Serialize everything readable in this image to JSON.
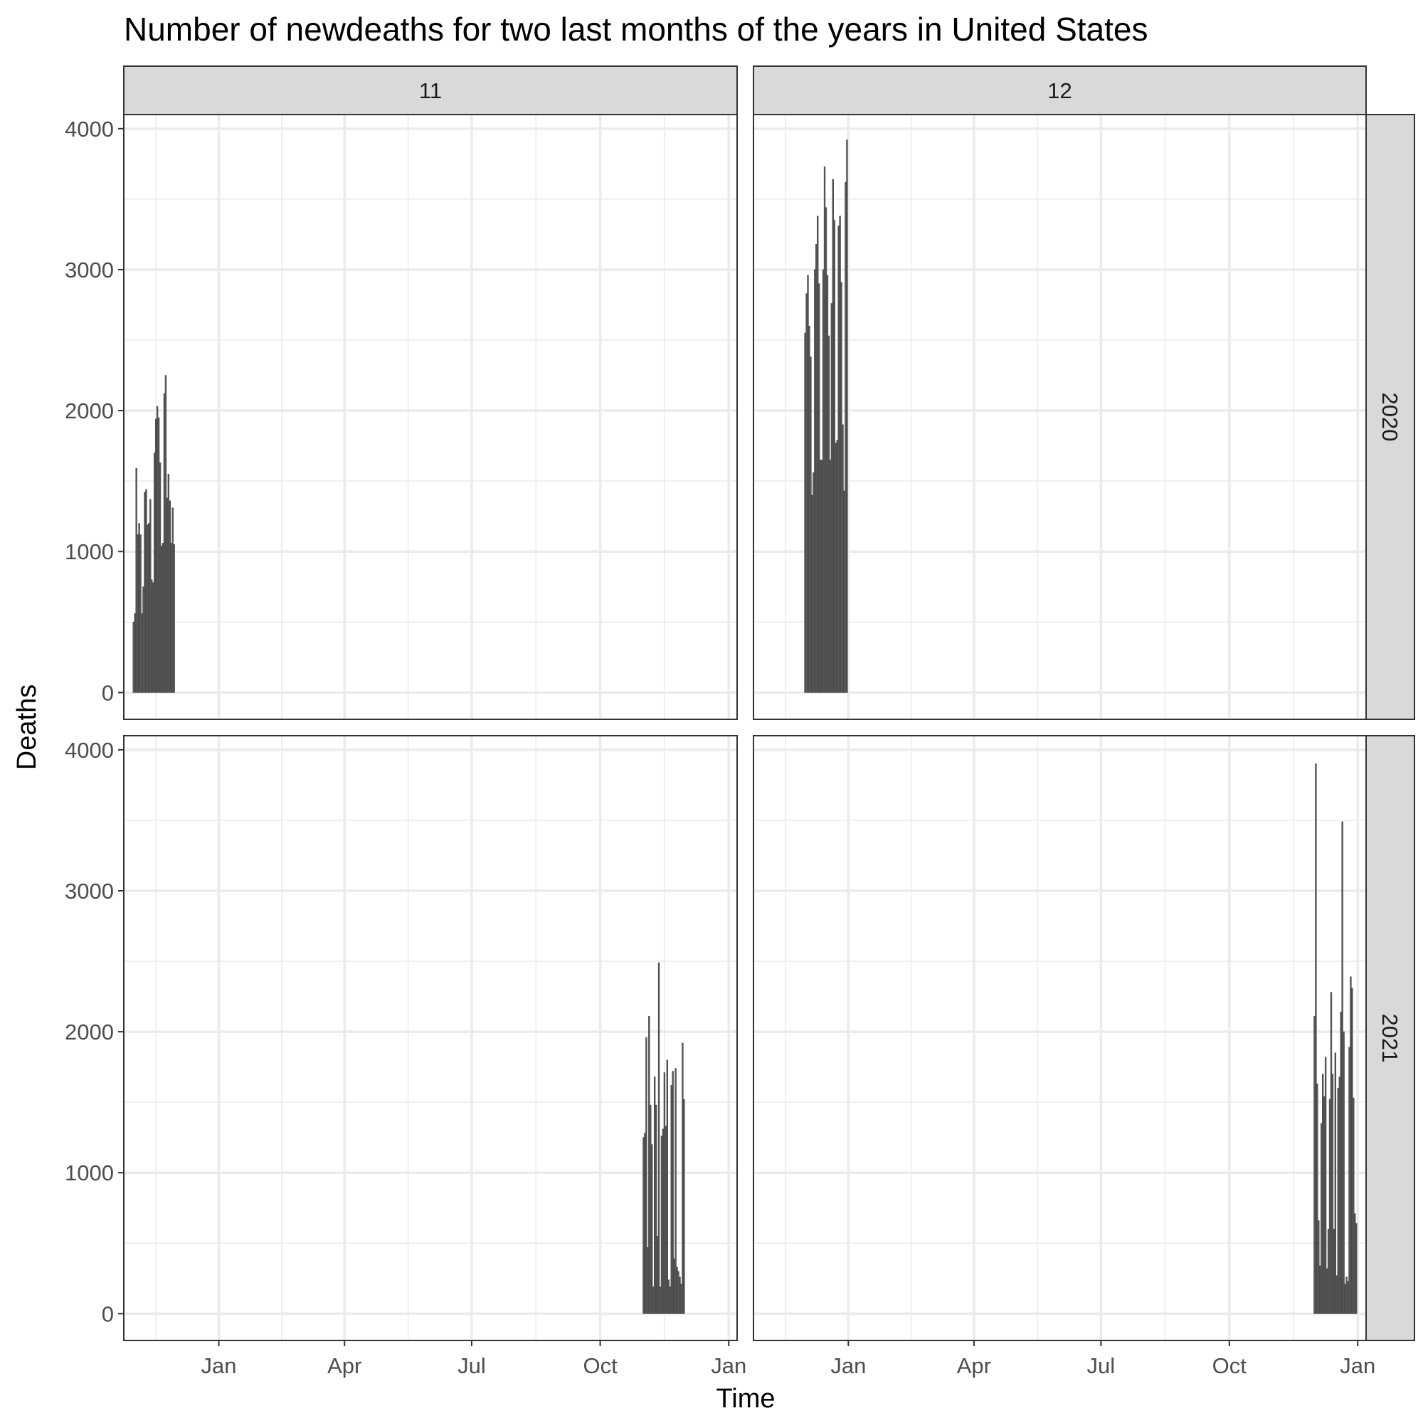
{
  "chart_data": {
    "type": "bar",
    "title": "Number of newdeaths for two last months of the years in United States",
    "xlabel": "Time",
    "ylabel": "Deaths",
    "facet_cols": [
      "11",
      "12"
    ],
    "facet_rows": [
      "2020",
      "2021"
    ],
    "x_ticks": [
      {
        "date": "2021-01-01",
        "label": "Jan"
      },
      {
        "date": "2021-04-01",
        "label": "Apr"
      },
      {
        "date": "2021-07-01",
        "label": "Jul"
      },
      {
        "date": "2021-10-01",
        "label": "Oct"
      },
      {
        "date": "2022-01-01",
        "label": "Jan"
      }
    ],
    "xlim": [
      "2020-10-25",
      "2022-01-07"
    ],
    "y_ticks": [
      0,
      1000,
      2000,
      3000,
      4000
    ],
    "ylim": [
      -190,
      4100
    ],
    "grid": true,
    "panels": [
      {
        "month": "11",
        "year": "2020",
        "x": [
          "2020-11-01",
          "2020-11-02",
          "2020-11-03",
          "2020-11-04",
          "2020-11-05",
          "2020-11-06",
          "2020-11-07",
          "2020-11-08",
          "2020-11-09",
          "2020-11-10",
          "2020-11-11",
          "2020-11-12",
          "2020-11-13",
          "2020-11-14",
          "2020-11-15",
          "2020-11-16",
          "2020-11-17",
          "2020-11-18",
          "2020-11-19",
          "2020-11-20",
          "2020-11-21",
          "2020-11-22",
          "2020-11-23",
          "2020-11-24",
          "2020-11-25",
          "2020-11-26",
          "2020-11-27",
          "2020-11-28",
          "2020-11-29",
          "2020-11-30"
        ],
        "values": [
          500,
          560,
          1590,
          1120,
          1200,
          1120,
          560,
          750,
          1420,
          1440,
          1190,
          1200,
          1370,
          800,
          780,
          1700,
          1940,
          2030,
          1950,
          1630,
          1040,
          1060,
          2120,
          2250,
          1380,
          1550,
          1360,
          1060,
          1310,
          1050
        ]
      },
      {
        "month": "12",
        "year": "2020",
        "x": [
          "2020-12-01",
          "2020-12-02",
          "2020-12-03",
          "2020-12-04",
          "2020-12-05",
          "2020-12-06",
          "2020-12-07",
          "2020-12-08",
          "2020-12-09",
          "2020-12-10",
          "2020-12-11",
          "2020-12-12",
          "2020-12-13",
          "2020-12-14",
          "2020-12-15",
          "2020-12-16",
          "2020-12-17",
          "2020-12-18",
          "2020-12-19",
          "2020-12-20",
          "2020-12-21",
          "2020-12-22",
          "2020-12-23",
          "2020-12-24",
          "2020-12-25",
          "2020-12-26",
          "2020-12-27",
          "2020-12-28",
          "2020-12-29",
          "2020-12-30",
          "2020-12-31"
        ],
        "values": [
          2550,
          2830,
          2960,
          2600,
          2380,
          1400,
          1560,
          3000,
          3180,
          3380,
          2900,
          1650,
          1650,
          3000,
          3730,
          3440,
          2960,
          2530,
          1650,
          2760,
          3640,
          3350,
          1770,
          1790,
          3310,
          3380,
          2910,
          1900,
          1430,
          3620,
          3920
        ]
      },
      {
        "month": "11",
        "year": "2021",
        "x": [
          "2021-11-01",
          "2021-11-02",
          "2021-11-03",
          "2021-11-04",
          "2021-11-05",
          "2021-11-06",
          "2021-11-07",
          "2021-11-08",
          "2021-11-09",
          "2021-11-10",
          "2021-11-11",
          "2021-11-12",
          "2021-11-13",
          "2021-11-14",
          "2021-11-15",
          "2021-11-16",
          "2021-11-17",
          "2021-11-18",
          "2021-11-19",
          "2021-11-20",
          "2021-11-21",
          "2021-11-22",
          "2021-11-23",
          "2021-11-24",
          "2021-11-25",
          "2021-11-26",
          "2021-11-27",
          "2021-11-28",
          "2021-11-29",
          "2021-11-30"
        ],
        "values": [
          1250,
          1280,
          1960,
          470,
          2110,
          1480,
          1200,
          190,
          1680,
          1480,
          550,
          2490,
          190,
          1260,
          1310,
          1710,
          1330,
          1800,
          240,
          190,
          1620,
          1720,
          390,
          1740,
          330,
          300,
          260,
          210,
          1920,
          1520
        ]
      },
      {
        "month": "12",
        "year": "2021",
        "x": [
          "2021-12-01",
          "2021-12-02",
          "2021-12-03",
          "2021-12-04",
          "2021-12-05",
          "2021-12-06",
          "2021-12-07",
          "2021-12-08",
          "2021-12-09",
          "2021-12-10",
          "2021-12-11",
          "2021-12-12",
          "2021-12-13",
          "2021-12-14",
          "2021-12-15",
          "2021-12-16",
          "2021-12-17",
          "2021-12-18",
          "2021-12-19",
          "2021-12-20",
          "2021-12-21",
          "2021-12-22",
          "2021-12-23",
          "2021-12-24",
          "2021-12-25",
          "2021-12-26",
          "2021-12-27",
          "2021-12-28",
          "2021-12-29",
          "2021-12-30",
          "2021-12-31"
        ],
        "values": [
          2110,
          3900,
          1630,
          660,
          340,
          1350,
          1700,
          1540,
          1820,
          320,
          600,
          1520,
          2280,
          1700,
          600,
          1850,
          270,
          1600,
          1680,
          2140,
          3490,
          2000,
          210,
          260,
          230,
          1890,
          2390,
          2310,
          1530,
          710,
          640
        ]
      }
    ]
  }
}
